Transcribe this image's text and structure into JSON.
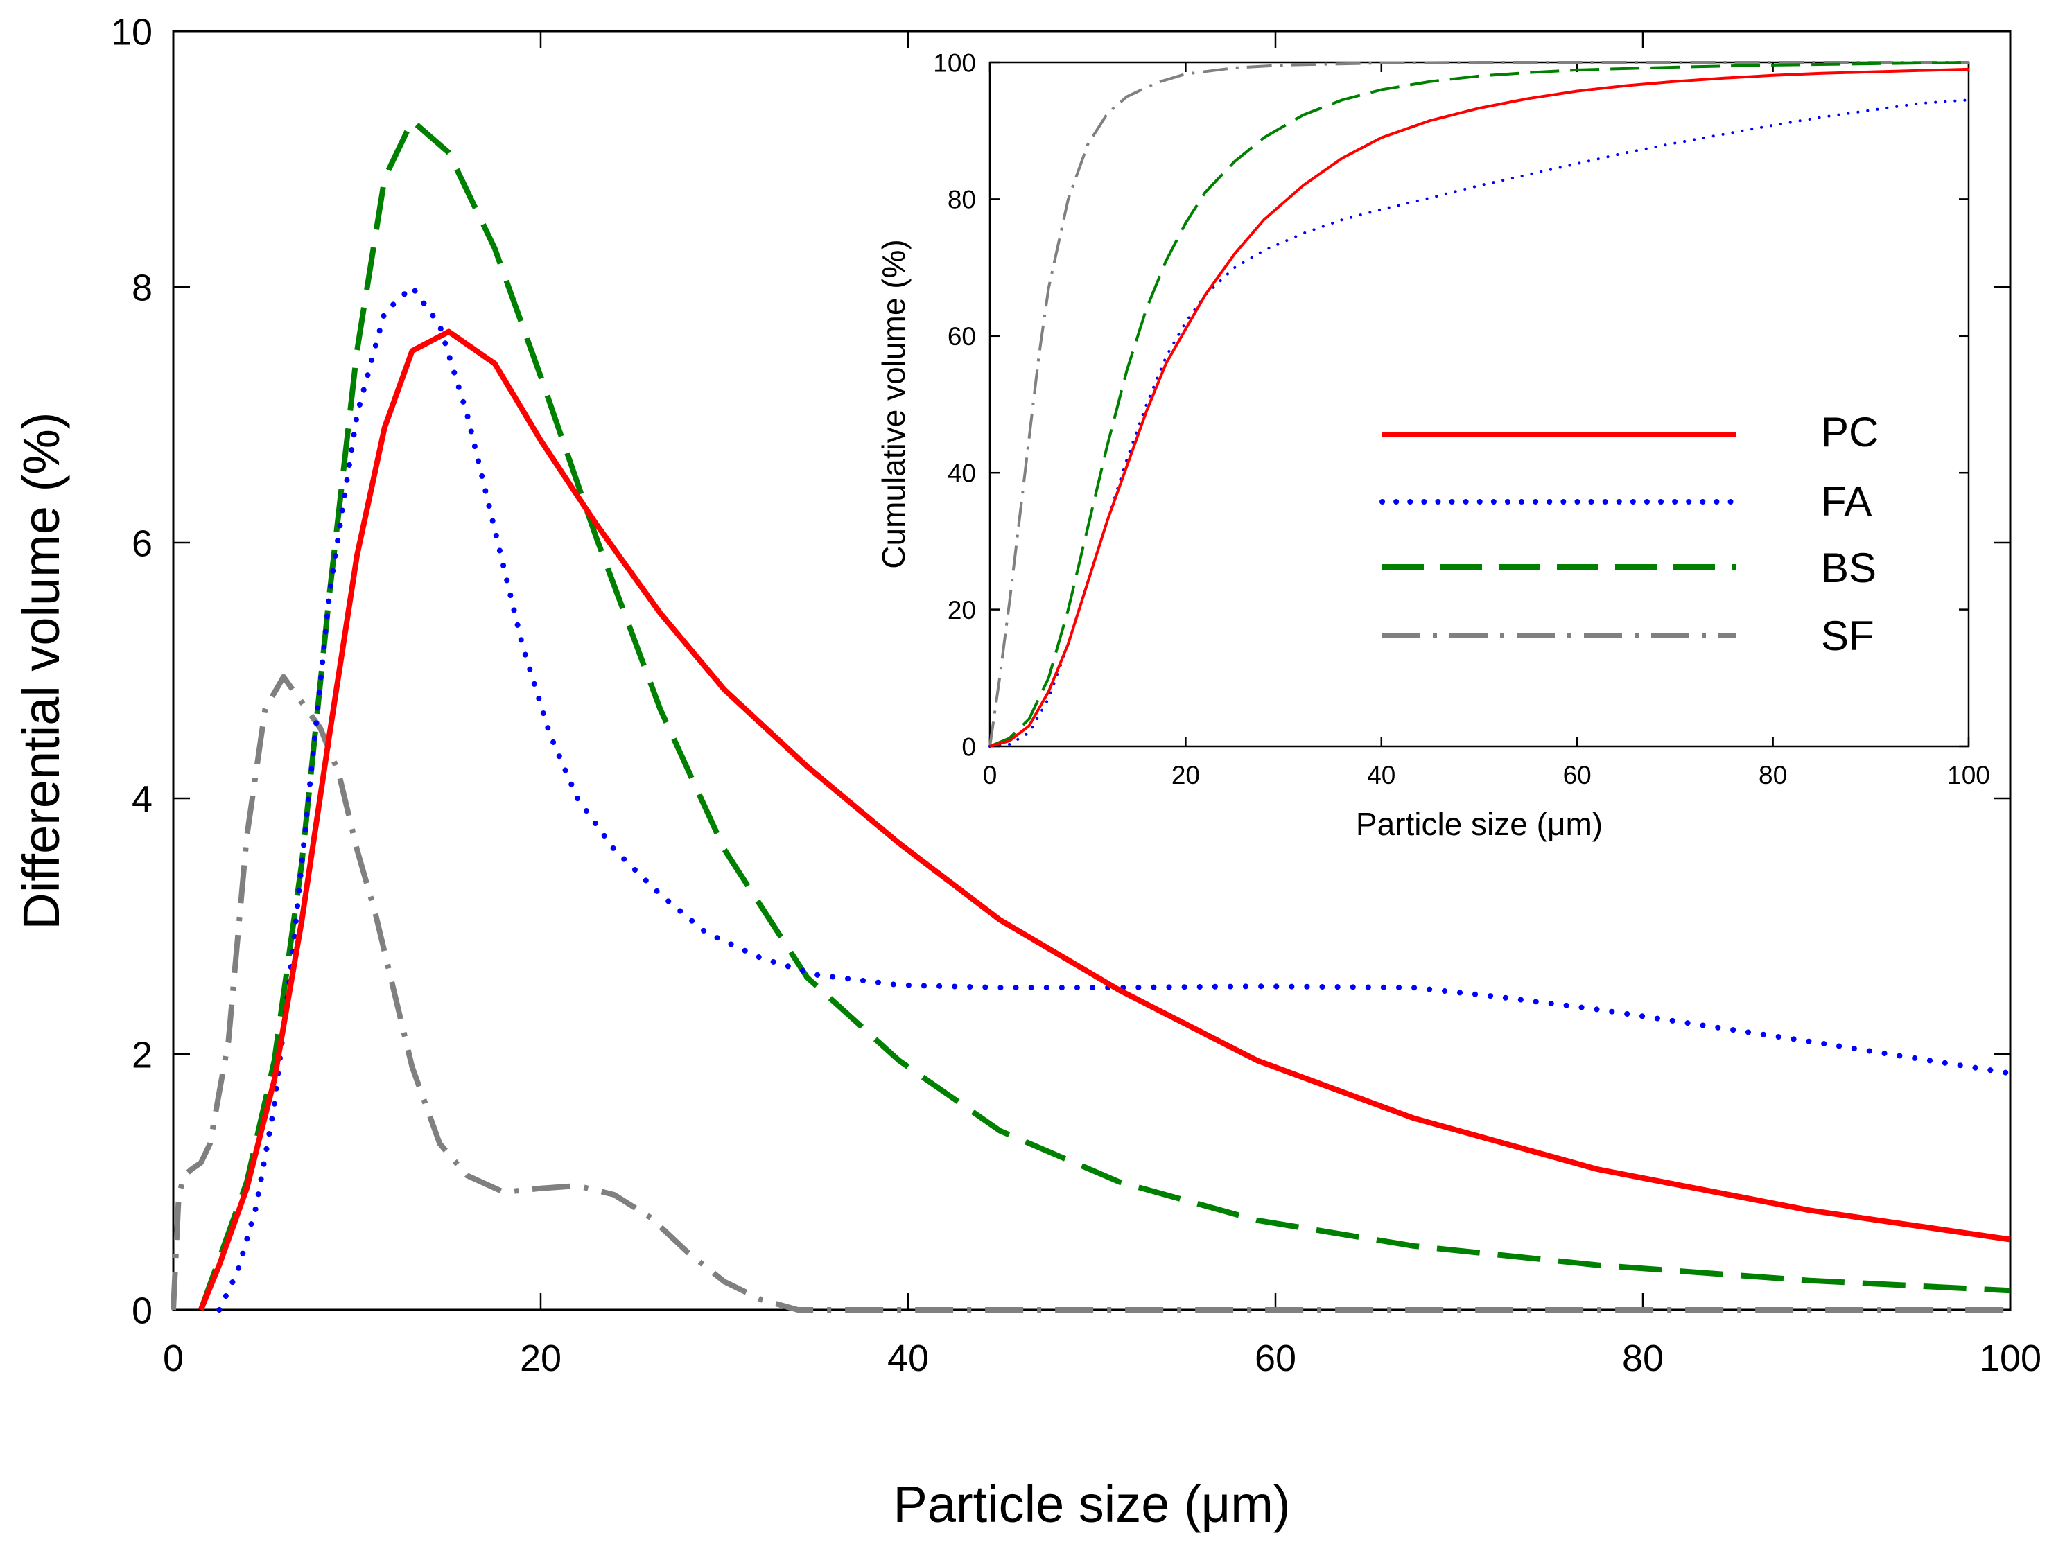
{
  "chart_data": [
    {
      "id": "main",
      "type": "line",
      "title": "",
      "xlabel": "Particle size (μm)",
      "ylabel": "Differential volume (%)",
      "xlim": [
        0,
        100
      ],
      "ylim": [
        0,
        10
      ],
      "xticks": [
        0,
        20,
        40,
        60,
        80,
        100
      ],
      "yticks": [
        0,
        2,
        4,
        6,
        8,
        10
      ],
      "grid": false,
      "series": [
        {
          "name": "PC",
          "color": "#ff0000",
          "style": "solid",
          "x": [
            1.5,
            2.5,
            4,
            5.5,
            7,
            8.5,
            10,
            11.5,
            13,
            15,
            17.5,
            20,
            23,
            26.5,
            30,
            34.5,
            39.5,
            45,
            51.5,
            59,
            67.5,
            77.5,
            89,
            100
          ],
          "y": [
            0.0,
            0.35,
            0.95,
            1.8,
            3.05,
            4.5,
            5.9,
            6.9,
            7.5,
            7.65,
            7.4,
            6.8,
            6.15,
            5.45,
            4.85,
            4.25,
            3.65,
            3.05,
            2.5,
            1.95,
            1.5,
            1.1,
            0.78,
            0.55
          ]
        },
        {
          "name": "FA",
          "color": "#0000ff",
          "style": "dotted",
          "x": [
            2.5,
            3.5,
            4.5,
            5.5,
            6.5,
            7.5,
            8.5,
            10,
            11.5,
            13,
            14.5,
            16,
            17.5,
            19,
            20.5,
            22,
            24,
            26.5,
            29,
            32,
            35,
            39.5,
            45,
            51.5,
            59,
            67.5,
            72,
            77.5,
            89,
            100
          ],
          "y": [
            0.0,
            0.3,
            0.8,
            1.6,
            2.8,
            4.2,
            5.6,
            7.0,
            7.8,
            8.0,
            7.7,
            7.0,
            6.1,
            5.2,
            4.5,
            4.0,
            3.6,
            3.25,
            2.95,
            2.75,
            2.62,
            2.54,
            2.52,
            2.52,
            2.53,
            2.52,
            2.45,
            2.35,
            2.1,
            1.85
          ]
        },
        {
          "name": "BS",
          "color": "#008000",
          "style": "dashed",
          "x": [
            1.5,
            2.5,
            4,
            5.5,
            7,
            8.5,
            10,
            11.5,
            13,
            15,
            17.5,
            20,
            23,
            26.5,
            30,
            34.5,
            39.5,
            45,
            51.5,
            59,
            67.5,
            77.5,
            89,
            100
          ],
          "y": [
            0.0,
            0.4,
            1.0,
            1.95,
            3.5,
            5.6,
            7.5,
            8.85,
            9.3,
            9.05,
            8.3,
            7.3,
            6.05,
            4.7,
            3.6,
            2.6,
            1.95,
            1.4,
            1.0,
            0.7,
            0.5,
            0.35,
            0.23,
            0.15
          ]
        },
        {
          "name": "SF",
          "color": "#808080",
          "style": "dashdot",
          "x": [
            0,
            0.3,
            0.6,
            1.0,
            1.5,
            2.0,
            3.0,
            4.0,
            5.0,
            6.0,
            7.0,
            8.0,
            9.0,
            10.0,
            11.0,
            12.0,
            13.0,
            14.5,
            16,
            18,
            20,
            22,
            24,
            26,
            28,
            30,
            32,
            34,
            40,
            50,
            60,
            70,
            80,
            90,
            100
          ],
          "y": [
            0.0,
            0.9,
            1.05,
            1.1,
            1.15,
            1.3,
            2.1,
            3.7,
            4.7,
            4.95,
            4.75,
            4.55,
            4.2,
            3.6,
            3.1,
            2.5,
            1.9,
            1.3,
            1.05,
            0.92,
            0.95,
            0.97,
            0.9,
            0.72,
            0.45,
            0.22,
            0.08,
            0.0,
            0.0,
            0.0,
            0.0,
            0.0,
            0.0,
            0.0,
            0.0
          ]
        }
      ],
      "legend": {
        "placement": "inside inset, right",
        "entries": [
          "PC",
          "FA",
          "BS",
          "SF"
        ]
      }
    },
    {
      "id": "inset",
      "type": "line",
      "title": "",
      "xlabel": "Particle size (μm)",
      "ylabel": "Cumulative volume (%)",
      "xlim": [
        0,
        100
      ],
      "ylim": [
        0,
        100
      ],
      "xticks": [
        0,
        20,
        40,
        60,
        80,
        100
      ],
      "yticks": [
        0,
        20,
        40,
        60,
        80,
        100
      ],
      "grid": false,
      "series": [
        {
          "name": "PC",
          "color": "#ff0000",
          "style": "solid",
          "x": [
            0,
            2,
            4,
            6,
            8,
            10,
            12,
            14,
            16,
            18,
            20,
            22,
            25,
            28,
            32,
            36,
            40,
            45,
            50,
            55,
            60,
            65,
            70,
            75,
            80,
            85,
            90,
            95,
            100
          ],
          "y": [
            0,
            0.8,
            3,
            8,
            15,
            24,
            33,
            41,
            49,
            56,
            61,
            66,
            72,
            77,
            82,
            86,
            89,
            91.5,
            93.3,
            94.7,
            95.8,
            96.6,
            97.2,
            97.7,
            98.1,
            98.4,
            98.6,
            98.8,
            99
          ]
        },
        {
          "name": "FA",
          "color": "#0000ff",
          "style": "dotted",
          "x": [
            0,
            2,
            4,
            6,
            8,
            10,
            12,
            14,
            16,
            18,
            20,
            22,
            25,
            28,
            32,
            36,
            40,
            45,
            50,
            55,
            60,
            65,
            70,
            75,
            80,
            85,
            90,
            95,
            100
          ],
          "y": [
            0,
            0.3,
            2,
            7,
            15,
            24,
            33,
            42,
            50,
            57,
            62,
            66,
            70,
            72.5,
            75,
            77,
            78.5,
            80.2,
            82,
            83.6,
            85.2,
            86.8,
            88.2,
            89.5,
            90.8,
            92,
            93,
            94,
            94.5
          ]
        },
        {
          "name": "BS",
          "color": "#008000",
          "style": "dashed",
          "x": [
            0,
            2,
            4,
            6,
            8,
            10,
            12,
            14,
            16,
            18,
            20,
            22,
            25,
            28,
            32,
            36,
            40,
            45,
            50,
            55,
            60,
            70,
            80,
            90,
            100
          ],
          "y": [
            0,
            1.2,
            4,
            10,
            20,
            32,
            44,
            55,
            64,
            71,
            76.5,
            81,
            85.5,
            89,
            92.3,
            94.5,
            96,
            97.2,
            98,
            98.5,
            98.9,
            99.3,
            99.6,
            99.8,
            100
          ]
        },
        {
          "name": "SF",
          "color": "#808080",
          "style": "dashdot",
          "x": [
            0,
            1,
            2,
            3,
            4,
            5,
            6,
            8,
            10,
            12,
            14,
            17,
            20,
            25,
            30,
            40,
            50,
            60,
            80,
            100
          ],
          "y": [
            0,
            10,
            21,
            33,
            45,
            57,
            67,
            80,
            88,
            92.5,
            95,
            97,
            98.3,
            99.2,
            99.6,
            99.9,
            100,
            100,
            100,
            100
          ]
        }
      ]
    }
  ]
}
